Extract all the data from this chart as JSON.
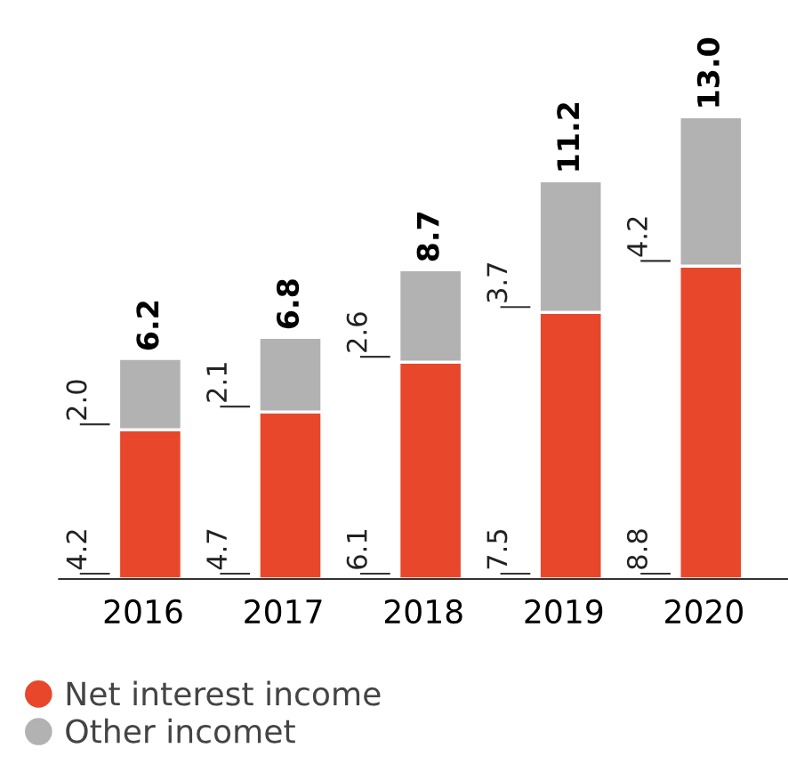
{
  "chart_data": {
    "type": "bar",
    "stacked": true,
    "legend": "bottom left",
    "categories": [
      "2016",
      "2017",
      "2018",
      "2019",
      "2020"
    ],
    "series": [
      {
        "name": "Net interest income",
        "color": "#e8472b",
        "values": [
          4.2,
          4.7,
          6.1,
          7.5,
          8.8
        ],
        "value_labels": [
          "4.2",
          "4.7",
          "6.1",
          "7.5",
          "8.8"
        ]
      },
      {
        "name": "Other incomet",
        "color": "#b2b2b2",
        "values": [
          2.0,
          2.1,
          2.6,
          3.7,
          4.2
        ],
        "value_labels": [
          "2.0",
          "2.1",
          "2.6",
          "3.7",
          "4.2"
        ]
      }
    ],
    "totals": [
      "6.2",
      "6.8",
      "8.7",
      "11.2",
      "13.0"
    ]
  }
}
